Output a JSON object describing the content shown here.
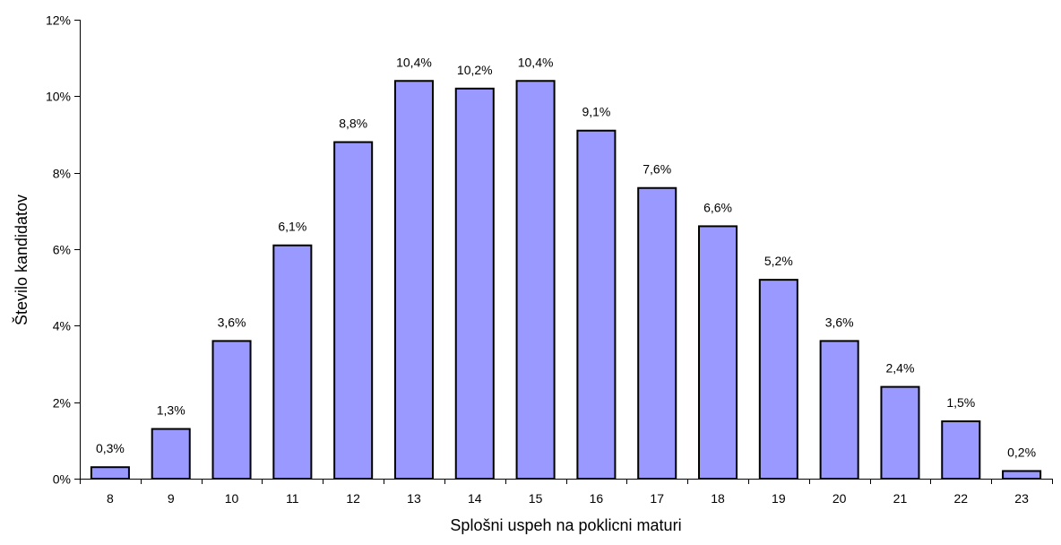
{
  "chart_data": {
    "type": "bar",
    "title": "",
    "xlabel": "Splošni uspeh na poklicni maturi",
    "ylabel": "Število kandidatov",
    "categories": [
      "8",
      "9",
      "10",
      "11",
      "12",
      "13",
      "14",
      "15",
      "16",
      "17",
      "18",
      "19",
      "20",
      "21",
      "22",
      "23"
    ],
    "values": [
      0.3,
      1.3,
      3.6,
      6.1,
      8.8,
      10.4,
      10.2,
      10.4,
      9.1,
      7.6,
      6.6,
      5.2,
      3.6,
      2.4,
      1.5,
      0.2
    ],
    "data_labels": [
      "0,3%",
      "1,3%",
      "3,6%",
      "6,1%",
      "8,8%",
      "10,4%",
      "10,2%",
      "10,4%",
      "9,1%",
      "7,6%",
      "6,6%",
      "5,2%",
      "3,6%",
      "2,4%",
      "1,5%",
      "0,2%"
    ],
    "y_ticks": [
      0,
      2,
      4,
      6,
      8,
      10,
      12
    ],
    "y_tick_labels": [
      "0%",
      "2%",
      "4%",
      "6%",
      "8%",
      "10%",
      "12%"
    ],
    "ylim": [
      0,
      12
    ],
    "grid": false,
    "legend": "none",
    "bar_color": "#9999FF",
    "bar_edge_color": "#000000"
  }
}
